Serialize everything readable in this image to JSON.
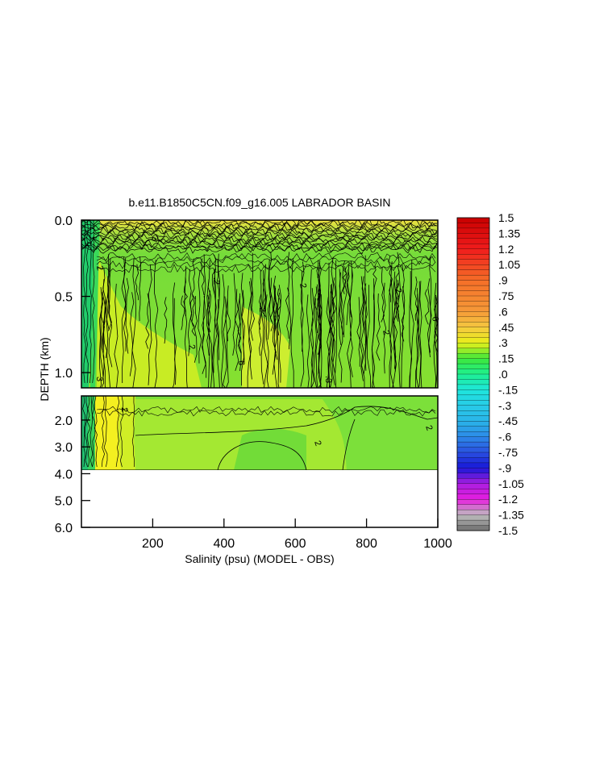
{
  "chart_data": {
    "type": "heatmap",
    "title": "b.e11.B1850C5CN.f09_g16.005 LABRADOR BASIN",
    "xlabel": "Salinity (psu) (MODEL - OBS)",
    "ylabel": "DEPTH (km)",
    "x_ticks": [
      "200",
      "400",
      "600",
      "800",
      "1000"
    ],
    "x_tick_values": [
      200,
      400,
      600,
      800,
      1000
    ],
    "xlim": [
      0,
      1000
    ],
    "upper_panel": {
      "ylim": [
        0.0,
        1.1
      ],
      "y_ticks": [
        "0.0",
        "0.5",
        "1.0"
      ],
      "y_tick_values": [
        0.0,
        0.5,
        1.0
      ]
    },
    "lower_panel": {
      "ylim": [
        1.1,
        6.0
      ],
      "y_ticks": [
        "2.0",
        "3.0",
        "4.0",
        "5.0",
        "6.0"
      ],
      "y_tick_values": [
        2.0,
        3.0,
        4.0,
        5.0,
        6.0
      ],
      "data_bottom_km": 3.9
    },
    "colorbar": {
      "labels": [
        "1.5",
        "1.35",
        "1.2",
        "1.05",
        ".9",
        ".75",
        ".6",
        ".45",
        ".3",
        ".15",
        ".0",
        "-.15",
        "-.3",
        "-.45",
        "-.6",
        "-.75",
        "-.9",
        "-1.05",
        "-1.2",
        "-1.35",
        "-1.5"
      ],
      "min": -1.5,
      "max": 1.5,
      "step": 0.05,
      "anchor_colors": [
        {
          "v": 1.5,
          "c": "#c80000"
        },
        {
          "v": 1.2,
          "c": "#f01c1c"
        },
        {
          "v": 0.9,
          "c": "#f56e28"
        },
        {
          "v": 0.6,
          "c": "#f59a38"
        },
        {
          "v": 0.45,
          "c": "#f5c840"
        },
        {
          "v": 0.3,
          "c": "#e8f01a"
        },
        {
          "v": 0.15,
          "c": "#3ee83a"
        },
        {
          "v": 0.0,
          "c": "#1ef090"
        },
        {
          "v": -0.15,
          "c": "#1ee6dc"
        },
        {
          "v": -0.3,
          "c": "#28cce8"
        },
        {
          "v": -0.45,
          "c": "#2ab4e8"
        },
        {
          "v": -0.6,
          "c": "#2c8ae8"
        },
        {
          "v": -0.75,
          "c": "#2a50e0"
        },
        {
          "v": -0.9,
          "c": "#1818d8"
        },
        {
          "v": -1.05,
          "c": "#a81ee0"
        },
        {
          "v": -1.2,
          "c": "#e81ee0"
        },
        {
          "v": -1.35,
          "c": "#bebebe"
        },
        {
          "v": -1.5,
          "c": "#6e6e6e"
        }
      ]
    },
    "contour_labels": [
      "2",
      ".2",
      "3",
      ".3",
      "6"
    ],
    "field_colors": {
      "surface": "#8fdc4a",
      "main": "#7ce03a",
      "yellow_green": "#c8ec20",
      "yellow": "#f0f020",
      "left_edge": "#22cc6a"
    }
  }
}
